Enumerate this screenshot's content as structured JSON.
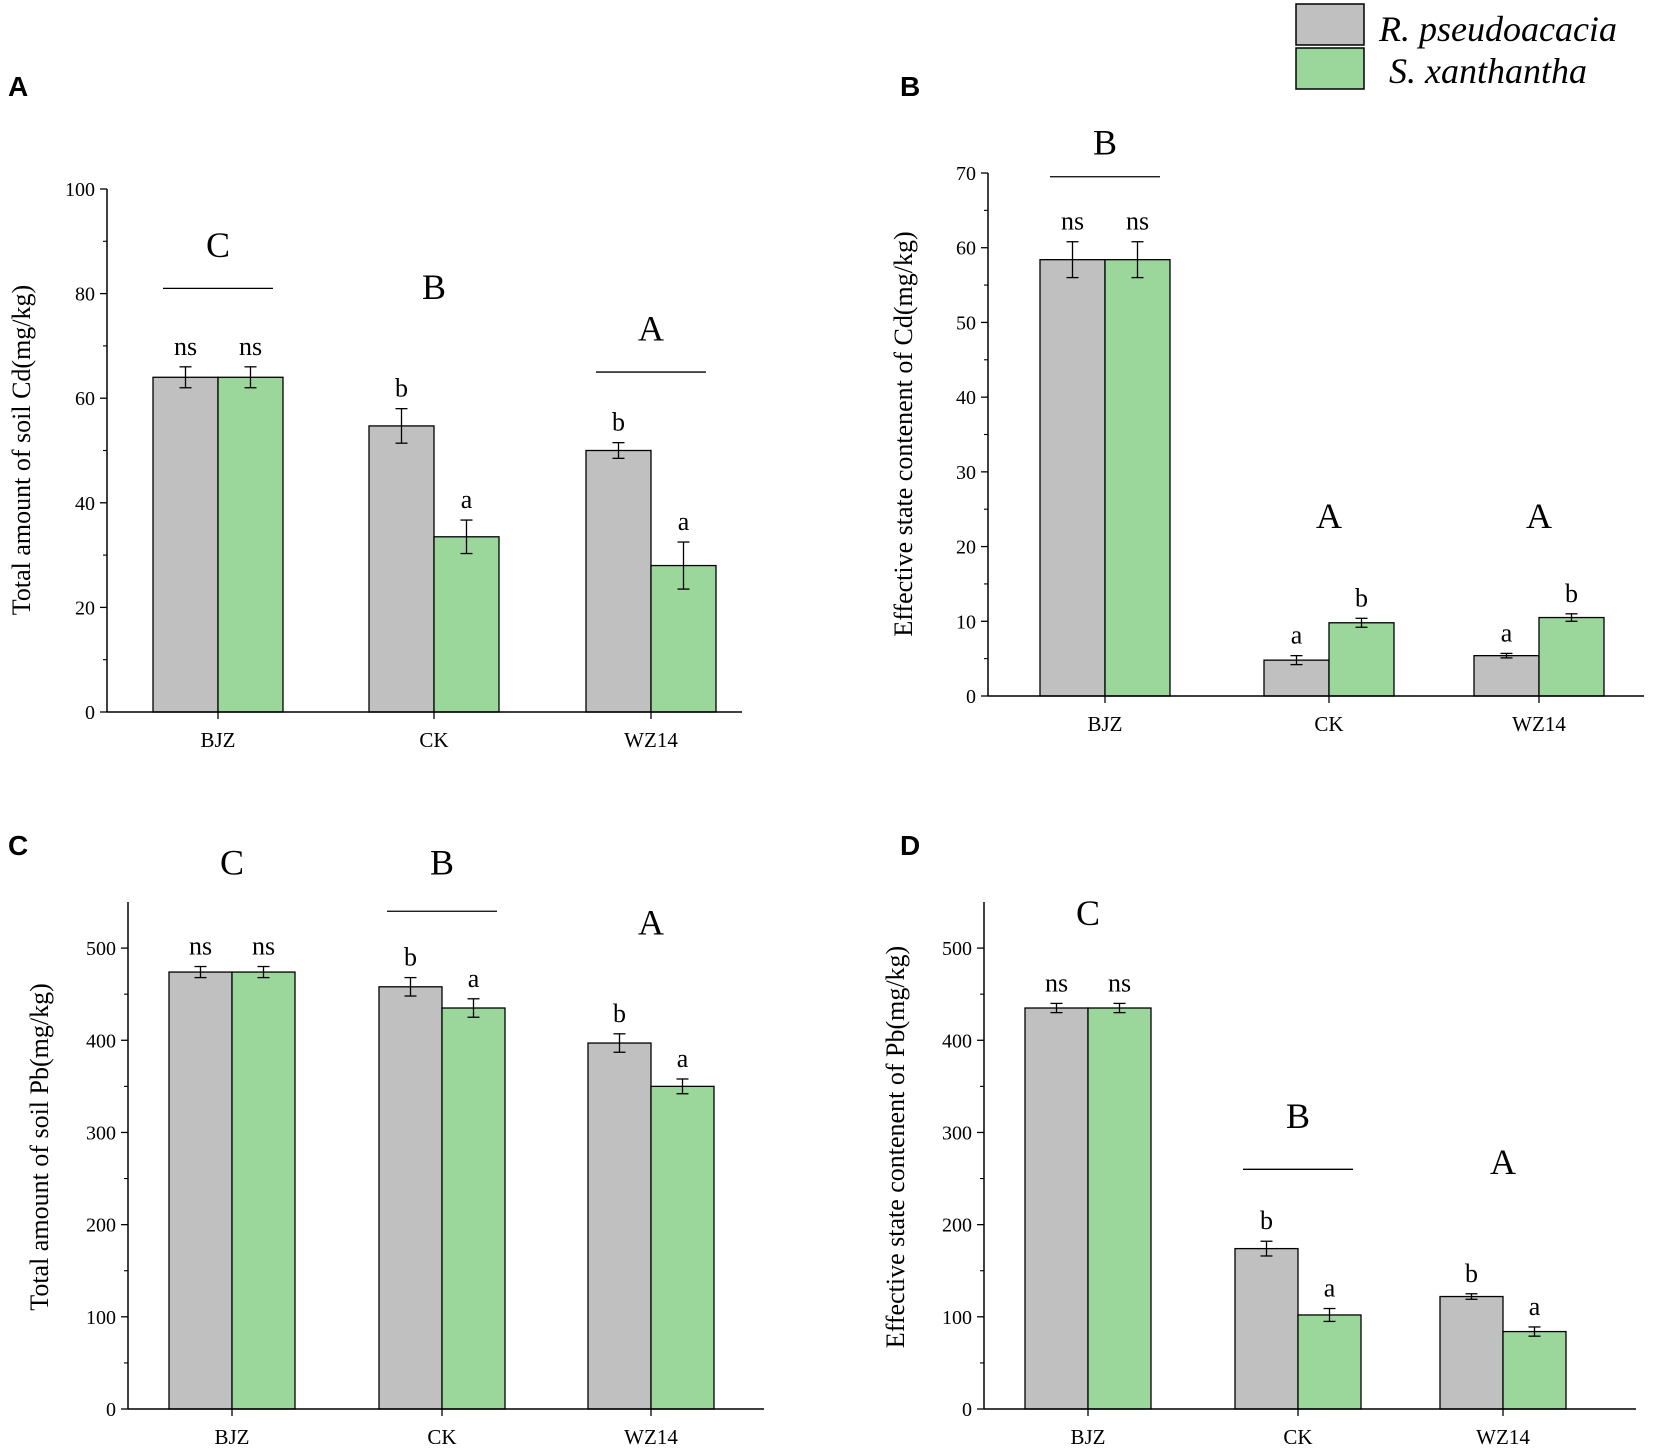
{
  "legend": [
    {
      "label": "R. pseudoacacia",
      "color": "#c0c0c0"
    },
    {
      "label": "S. xanthantha",
      "color": "#9bd79b"
    }
  ],
  "chart_data": [
    {
      "panel": "A",
      "type": "bar",
      "categories": [
        "BJZ",
        "CK",
        "WZ14"
      ],
      "ylabel": "Total amount of soil Cd(mg/kg)",
      "ylim": [
        0,
        100
      ],
      "yticks": [
        0,
        20,
        40,
        60,
        80,
        100
      ],
      "series": [
        {
          "name": "R. pseudoacacia",
          "values": [
            64,
            54.7,
            50
          ],
          "errors": [
            2,
            3.3,
            1.5
          ],
          "labels": [
            "ns",
            "b",
            "b"
          ]
        },
        {
          "name": "S. xanthantha",
          "values": [
            64,
            33.5,
            28
          ],
          "errors": [
            2,
            3.2,
            4.5
          ],
          "labels": [
            "ns",
            "a",
            "a"
          ]
        }
      ],
      "groups": [
        {
          "letter": "C",
          "line": true,
          "letter_value": 87,
          "line_value": 81
        },
        {
          "letter": "B",
          "line": false,
          "letter_value": 79
        },
        {
          "letter": "A",
          "line": true,
          "letter_value": 71,
          "line_value": 65
        }
      ]
    },
    {
      "panel": "B",
      "type": "bar",
      "categories": [
        "BJZ",
        "CK",
        "WZ14"
      ],
      "ylabel": "Effective state contenent of  Cd(mg/kg)",
      "ylim": [
        0,
        70
      ],
      "yticks": [
        0,
        10,
        20,
        30,
        40,
        50,
        60,
        70
      ],
      "series": [
        {
          "name": "R. pseudoacacia",
          "values": [
            58.4,
            4.8,
            5.4
          ],
          "errors": [
            2.4,
            0.6,
            0.3
          ],
          "labels": [
            "ns",
            "a",
            "a"
          ]
        },
        {
          "name": "S. xanthantha",
          "values": [
            58.4,
            9.8,
            10.5
          ],
          "errors": [
            2.4,
            0.6,
            0.5
          ],
          "labels": [
            "ns",
            "b",
            "b"
          ]
        }
      ],
      "groups": [
        {
          "letter": "B",
          "line": true,
          "letter_value": 72.5,
          "line_value": 69.5
        },
        {
          "letter": "A",
          "line": false,
          "letter_value": 22.5
        },
        {
          "letter": "A",
          "line": false,
          "letter_value": 22.5
        }
      ]
    },
    {
      "panel": "C",
      "type": "bar",
      "categories": [
        "BJZ",
        "CK",
        "WZ14"
      ],
      "ylabel": "Total amount of soil Pb(mg/kg)",
      "ylim": [
        0,
        550
      ],
      "yticks": [
        0,
        100,
        200,
        300,
        400,
        500
      ],
      "series": [
        {
          "name": "R. pseudoacacia",
          "values": [
            474,
            458,
            397
          ],
          "errors": [
            6,
            10,
            10
          ],
          "labels": [
            "ns",
            "b",
            "b"
          ]
        },
        {
          "name": "S. xanthantha",
          "values": [
            474,
            435,
            350
          ],
          "errors": [
            6,
            10,
            8
          ],
          "labels": [
            "ns",
            "a",
            "a"
          ]
        }
      ],
      "groups": [
        {
          "letter": "C",
          "line": false,
          "letter_value": 580
        },
        {
          "letter": "B",
          "line": true,
          "letter_value": 580,
          "line_value": 540
        },
        {
          "letter": "A",
          "line": false,
          "letter_value": 515
        }
      ]
    },
    {
      "panel": "D",
      "type": "bar",
      "categories": [
        "BJZ",
        "CK",
        "WZ14"
      ],
      "ylabel": "Effective state contenent of  Pb(mg/kg)",
      "ylim": [
        0,
        550
      ],
      "yticks": [
        0,
        100,
        200,
        300,
        400,
        500
      ],
      "series": [
        {
          "name": "R. pseudoacacia",
          "values": [
            435,
            174,
            122
          ],
          "errors": [
            5,
            8,
            3
          ],
          "labels": [
            "ns",
            "b",
            "b"
          ]
        },
        {
          "name": "S. xanthantha",
          "values": [
            435,
            102,
            84
          ],
          "errors": [
            5,
            7,
            5
          ],
          "labels": [
            "ns",
            "a",
            "a"
          ]
        }
      ],
      "groups": [
        {
          "letter": "C",
          "line": false,
          "letter_value": 525
        },
        {
          "letter": "B",
          "line": true,
          "letter_value": 305,
          "line_value": 260
        },
        {
          "letter": "A",
          "line": false,
          "letter_value": 255
        }
      ]
    }
  ]
}
